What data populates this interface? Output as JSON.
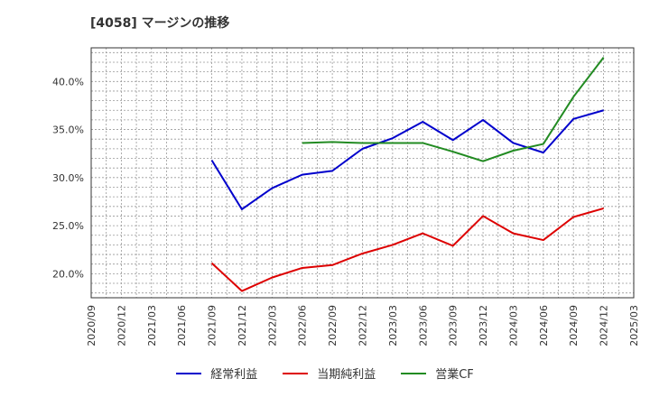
{
  "title": "[4058]  マージンの推移",
  "chart_data": {
    "type": "line",
    "x": [
      "2020/09",
      "2020/12",
      "2021/03",
      "2021/06",
      "2021/09",
      "2021/12",
      "2022/03",
      "2022/06",
      "2022/09",
      "2022/12",
      "2023/03",
      "2023/06",
      "2023/09",
      "2023/12",
      "2024/03",
      "2024/06",
      "2024/09",
      "2024/12",
      "2025/03"
    ],
    "ylim": [
      17.5,
      43.5
    ],
    "yticks": [
      20.0,
      25.0,
      30.0,
      35.0,
      40.0
    ],
    "ytick_labels": [
      "20.0%",
      "25.0%",
      "30.0%",
      "35.0%",
      "40.0%"
    ],
    "grid": true,
    "legend_position": "bottom",
    "series": [
      {
        "name": "経常利益",
        "color": "#0000cc",
        "values": [
          null,
          null,
          null,
          null,
          31.8,
          26.7,
          28.9,
          30.3,
          30.7,
          33.0,
          34.1,
          35.8,
          33.9,
          36.0,
          33.6,
          32.6,
          36.1,
          37.0,
          null
        ]
      },
      {
        "name": "当期純利益",
        "color": "#dd0000",
        "values": [
          null,
          null,
          null,
          null,
          21.1,
          18.2,
          19.6,
          20.6,
          20.9,
          22.1,
          23.0,
          24.2,
          22.9,
          26.0,
          24.2,
          23.5,
          25.9,
          26.8,
          null
        ]
      },
      {
        "name": "営業CF",
        "color": "#228b22",
        "values": [
          null,
          null,
          null,
          null,
          null,
          null,
          null,
          33.6,
          33.7,
          33.6,
          33.6,
          33.6,
          32.7,
          31.7,
          32.8,
          33.5,
          38.4,
          42.5,
          null
        ]
      }
    ]
  }
}
